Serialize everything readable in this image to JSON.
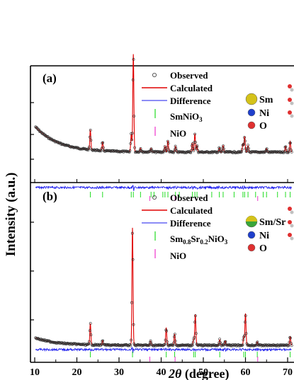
{
  "chart_data": {
    "type": "scatter",
    "ylabel": "Intensity (a.u.)",
    "xlabel_symbol": "2θ",
    "xlabel_rest": " (degree)",
    "x_ticks": [
      "10",
      "20",
      "30",
      "40",
      "50",
      "60",
      "70"
    ],
    "xlim": [
      10,
      71
    ],
    "panels": [
      {
        "label": "(a)",
        "legend": {
          "observed": "Observed",
          "calculated": "Calculated",
          "difference": "Difference",
          "phase1_base": "SmNiO",
          "phase1_sub": "3",
          "phase2": "NiO"
        },
        "structure_legend": [
          {
            "label": "Sm",
            "color": "#d4c21a"
          },
          {
            "label": "Ni",
            "color": "#1f3fcc"
          },
          {
            "label": "O",
            "color": "#e03030"
          }
        ],
        "background": {
          "start": 47,
          "decay": 5.5,
          "floor": 10
        },
        "peaks": [
          {
            "x": 23.2,
            "h": 28
          },
          {
            "x": 26.1,
            "h": 12
          },
          {
            "x": 32.9,
            "h": 25
          },
          {
            "x": 33.4,
            "h": 138
          },
          {
            "x": 35.1,
            "h": 5
          },
          {
            "x": 37.6,
            "h": 5
          },
          {
            "x": 40.9,
            "h": 8
          },
          {
            "x": 41.6,
            "h": 16
          },
          {
            "x": 43.4,
            "h": 8
          },
          {
            "x": 47.4,
            "h": 12
          },
          {
            "x": 48.0,
            "h": 26
          },
          {
            "x": 48.5,
            "h": 9
          },
          {
            "x": 53.8,
            "h": 6
          },
          {
            "x": 54.7,
            "h": 9
          },
          {
            "x": 59.4,
            "h": 12
          },
          {
            "x": 59.8,
            "h": 22
          },
          {
            "x": 60.6,
            "h": 9
          },
          {
            "x": 65.0,
            "h": 5
          },
          {
            "x": 69.5,
            "h": 8
          },
          {
            "x": 70.6,
            "h": 15
          }
        ],
        "ticks_phase1": [
          23.2,
          26.1,
          32.9,
          33.4,
          35.1,
          37.6,
          38.3,
          40.4,
          40.9,
          41.6,
          43.4,
          44.3,
          47.4,
          48.0,
          48.5,
          52.0,
          53.8,
          54.7,
          57.3,
          59.4,
          59.8,
          60.6,
          62.4,
          64.2,
          65.0,
          67.6,
          69.5,
          70.6
        ],
        "ticks_phase2": [
          37.3,
          43.3,
          62.9
        ]
      },
      {
        "label": "(b)",
        "legend": {
          "observed": "Observed",
          "calculated": "Calculated",
          "difference": "Difference",
          "phase1_parts": [
            "Sm",
            "0.8",
            "Sr",
            "0.2",
            "NiO",
            "3"
          ],
          "phase2": "NiO"
        },
        "structure_legend": [
          {
            "label": "Sm/Sr",
            "color": "#d4c21a",
            "color2": "#3aa53a"
          },
          {
            "label": "Ni",
            "color": "#1f3fcc"
          },
          {
            "label": "O",
            "color": "#e03030"
          }
        ],
        "background": {
          "start": 16,
          "decay": 5.0,
          "floor": 5
        },
        "peaks": [
          {
            "x": 23.2,
            "h": 30
          },
          {
            "x": 26.1,
            "h": 6
          },
          {
            "x": 33.2,
            "h": 166
          },
          {
            "x": 37.5,
            "h": 6
          },
          {
            "x": 41.2,
            "h": 25
          },
          {
            "x": 43.2,
            "h": 16
          },
          {
            "x": 47.7,
            "h": 8
          },
          {
            "x": 48.1,
            "h": 44
          },
          {
            "x": 53.9,
            "h": 8
          },
          {
            "x": 55.2,
            "h": 6
          },
          {
            "x": 59.6,
            "h": 12
          },
          {
            "x": 60.0,
            "h": 45
          },
          {
            "x": 62.8,
            "h": 5
          },
          {
            "x": 70.6,
            "h": 12
          }
        ],
        "ticks_phase1": [
          23.2,
          33.2,
          41.2,
          43.2,
          47.7,
          48.1,
          53.9,
          59.6,
          60.0,
          62.8,
          70.6
        ],
        "ticks_phase2": [
          37.3,
          43.3,
          62.9
        ]
      }
    ]
  }
}
